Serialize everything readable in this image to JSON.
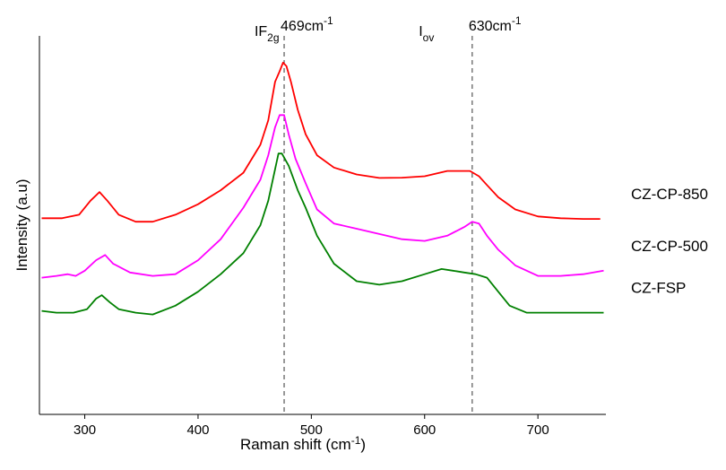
{
  "chart_data": {
    "type": "line",
    "xlabel": "Raman shift (cm",
    "xlabel_sup": "-1",
    "xlabel_close": ")",
    "ylabel": "Intensity (a.u)",
    "xlim": [
      260,
      760
    ],
    "ylim": [
      0,
      100
    ],
    "x_ticks": [
      300,
      400,
      500,
      600,
      700
    ],
    "x_ticklabels": [
      "300",
      "400",
      "500",
      "600",
      "700"
    ],
    "grid": false,
    "legend": "none",
    "annotations": [
      {
        "text": "469cm",
        "sup": "-1",
        "x": 476
      },
      {
        "text": "630cm",
        "sup": "-1",
        "x": 642
      }
    ],
    "band_labels": [
      {
        "text": "IF",
        "sub": "2g",
        "x": 453
      },
      {
        "text": "I",
        "sub": "ov",
        "x": 598
      }
    ],
    "series": [
      {
        "name": "CZ-CP-850",
        "color": "#ff0000",
        "x": [
          262,
          280,
          295,
          305,
          313,
          320,
          330,
          345,
          360,
          380,
          400,
          420,
          440,
          455,
          462,
          468,
          472,
          475,
          478,
          482,
          488,
          495,
          505,
          520,
          540,
          560,
          580,
          600,
          620,
          640,
          648,
          655,
          665,
          680,
          700,
          720,
          740,
          755
        ],
        "y": [
          53,
          53,
          54,
          58,
          60.5,
          58,
          54,
          52,
          52,
          54,
          57,
          61,
          66,
          74,
          81,
          92,
          95,
          97.5,
          96.5,
          92,
          84,
          77,
          71,
          67.5,
          65.5,
          64.5,
          64.6,
          65,
          66.5,
          66.5,
          65,
          62.5,
          59,
          55.5,
          53.5,
          53,
          52.8,
          52.8
        ]
      },
      {
        "name": "CZ-CP-500",
        "color": "#ff00ff",
        "x": [
          262,
          275,
          285,
          292,
          300,
          310,
          318,
          325,
          340,
          360,
          380,
          400,
          420,
          440,
          455,
          462,
          468,
          472,
          476,
          480,
          486,
          495,
          505,
          520,
          540,
          560,
          580,
          600,
          620,
          635,
          642,
          648,
          655,
          665,
          680,
          700,
          720,
          740,
          758
        ],
        "y": [
          36,
          36.5,
          37,
          36.5,
          38,
          41,
          42.5,
          40,
          37.5,
          36.5,
          37,
          41,
          47,
          56,
          64,
          71,
          79,
          82.5,
          82.5,
          77,
          70,
          63,
          55.5,
          51.5,
          50,
          48.5,
          47,
          46.5,
          48,
          50.5,
          52,
          51.5,
          48,
          44,
          39.5,
          36.5,
          36.5,
          37,
          38
        ]
      },
      {
        "name": "CZ-FSP",
        "color": "#008000",
        "x": [
          262,
          275,
          290,
          302,
          310,
          315,
          322,
          330,
          345,
          360,
          380,
          400,
          420,
          440,
          455,
          462,
          468,
          471,
          474,
          480,
          488,
          495,
          505,
          520,
          540,
          560,
          580,
          600,
          615,
          625,
          635,
          645,
          655,
          665,
          675,
          690,
          710,
          730,
          750,
          758
        ],
        "y": [
          26.5,
          26,
          26,
          27,
          30,
          31,
          29,
          27,
          26,
          25.5,
          28,
          32,
          37,
          43,
          51,
          58,
          67,
          71.5,
          71.5,
          68,
          61,
          56,
          48,
          40,
          35,
          34,
          35,
          37,
          38.5,
          38,
          37.5,
          37,
          36,
          32,
          28,
          26,
          26,
          26,
          26,
          26
        ]
      }
    ]
  }
}
